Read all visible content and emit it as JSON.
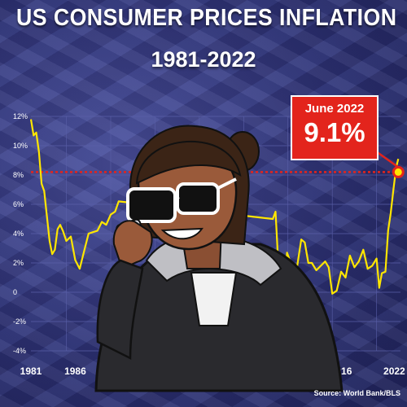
{
  "title": "US CONSUMER PRICES INFLATION",
  "subtitle": "1981-2022",
  "source": "Source: World Bank/BLS",
  "callout": {
    "label": "June 2022",
    "value": "9.1%"
  },
  "colors": {
    "line": "#ffe600",
    "reference": "#e3241c",
    "callout_bg": "#e3241c",
    "grid": "#5a5fa8",
    "text": "#ffffff"
  },
  "illustration": "woman-with-sunglasses-on-phone",
  "chart_data": {
    "type": "line",
    "title": "US CONSUMER PRICES INFLATION",
    "subtitle": "1981-2022",
    "ylim": [
      -4,
      12
    ],
    "y_ticks": [
      "-4%",
      "-2%",
      "0",
      "2%",
      "4%",
      "6%",
      "8%",
      "10%",
      "12%"
    ],
    "x_ticks": [
      "1981",
      "1986",
      "2016",
      "2022"
    ],
    "x_tick_years": [
      1981,
      1986,
      2016,
      2022
    ],
    "grid": true,
    "reference_line": {
      "value": 8.2,
      "style": "dotted"
    },
    "highlight": {
      "date": "June 2022",
      "x": 2022.45,
      "y": 9.1
    },
    "series": [
      {
        "values": [
          [
            1981.0,
            11.8
          ],
          [
            1981.3,
            10.7
          ],
          [
            1981.6,
            10.9
          ],
          [
            1981.9,
            9.6
          ],
          [
            1982.2,
            7.4
          ],
          [
            1982.5,
            6.9
          ],
          [
            1982.8,
            5.2
          ],
          [
            1983.1,
            3.5
          ],
          [
            1983.4,
            2.6
          ],
          [
            1983.7,
            2.9
          ],
          [
            1984.0,
            4.3
          ],
          [
            1984.3,
            4.6
          ],
          [
            1984.6,
            4.2
          ],
          [
            1985.0,
            3.5
          ],
          [
            1985.5,
            3.8
          ],
          [
            1986.0,
            2.2
          ],
          [
            1986.5,
            1.6
          ],
          [
            1987.0,
            2.8
          ],
          [
            1987.5,
            4.0
          ],
          [
            1988.0,
            4.1
          ],
          [
            1988.5,
            4.2
          ],
          [
            1989.0,
            4.8
          ],
          [
            1989.5,
            4.6
          ],
          [
            1990.0,
            5.3
          ],
          [
            1990.5,
            5.5
          ],
          [
            1990.9,
            6.2
          ],
          [
            2008.3,
            5.0
          ],
          [
            2008.6,
            5.5
          ],
          [
            2008.9,
            2.0
          ],
          [
            2009.2,
            -0.4
          ],
          [
            2009.5,
            -1.5
          ],
          [
            2009.9,
            2.7
          ],
          [
            2010.2,
            2.2
          ],
          [
            2010.6,
            1.1
          ],
          [
            2011.0,
            1.6
          ],
          [
            2011.5,
            3.6
          ],
          [
            2011.9,
            3.4
          ],
          [
            2012.3,
            2.0
          ],
          [
            2012.7,
            2.0
          ],
          [
            2013.2,
            1.5
          ],
          [
            2013.7,
            1.8
          ],
          [
            2014.2,
            2.1
          ],
          [
            2014.6,
            1.7
          ],
          [
            2015.0,
            -0.1
          ],
          [
            2015.5,
            0.1
          ],
          [
            2016.0,
            1.4
          ],
          [
            2016.5,
            1.0
          ],
          [
            2017.0,
            2.5
          ],
          [
            2017.5,
            1.7
          ],
          [
            2018.0,
            2.1
          ],
          [
            2018.5,
            2.9
          ],
          [
            2019.0,
            1.6
          ],
          [
            2019.5,
            1.8
          ],
          [
            2020.0,
            2.3
          ],
          [
            2020.3,
            0.3
          ],
          [
            2020.6,
            1.3
          ],
          [
            2021.0,
            1.4
          ],
          [
            2021.3,
            4.2
          ],
          [
            2021.6,
            5.4
          ],
          [
            2021.9,
            7.0
          ],
          [
            2022.2,
            8.5
          ],
          [
            2022.45,
            9.1
          ]
        ]
      }
    ]
  }
}
